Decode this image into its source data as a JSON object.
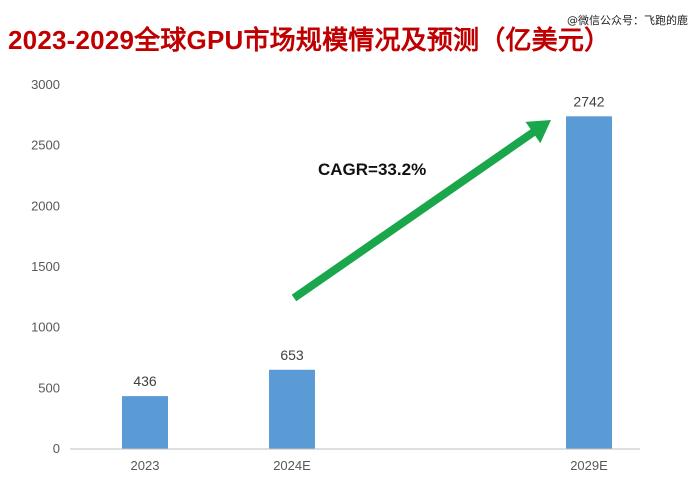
{
  "header": {
    "title": "2023-2029全球GPU市场规模情况及预测（亿美元）",
    "watermark": "@微信公众号：飞跑的鹿"
  },
  "colors": {
    "title": "#c00000",
    "bar": "#5b9bd5",
    "arrow": "#1aa64b",
    "axis": "#bfbfbf"
  },
  "chart_data": {
    "type": "bar",
    "title": "2023-2029全球GPU市场规模情况及预测（亿美元）",
    "categories": [
      "2023",
      "2024E",
      "2029E"
    ],
    "values": [
      436,
      653,
      2742
    ],
    "data_labels": [
      "436",
      "653",
      "2742"
    ],
    "ylim": [
      0,
      3000
    ],
    "yticks": [
      0,
      500,
      1000,
      1500,
      2000,
      2500,
      3000
    ],
    "xlabel": "",
    "ylabel": "",
    "grid": false,
    "legend": "none",
    "annotation": {
      "text": "CAGR=33.2%",
      "arrow_from": {
        "category": "2024E",
        "value": 1250
      },
      "arrow_to": {
        "category": "2029E",
        "value": 2720
      }
    }
  }
}
